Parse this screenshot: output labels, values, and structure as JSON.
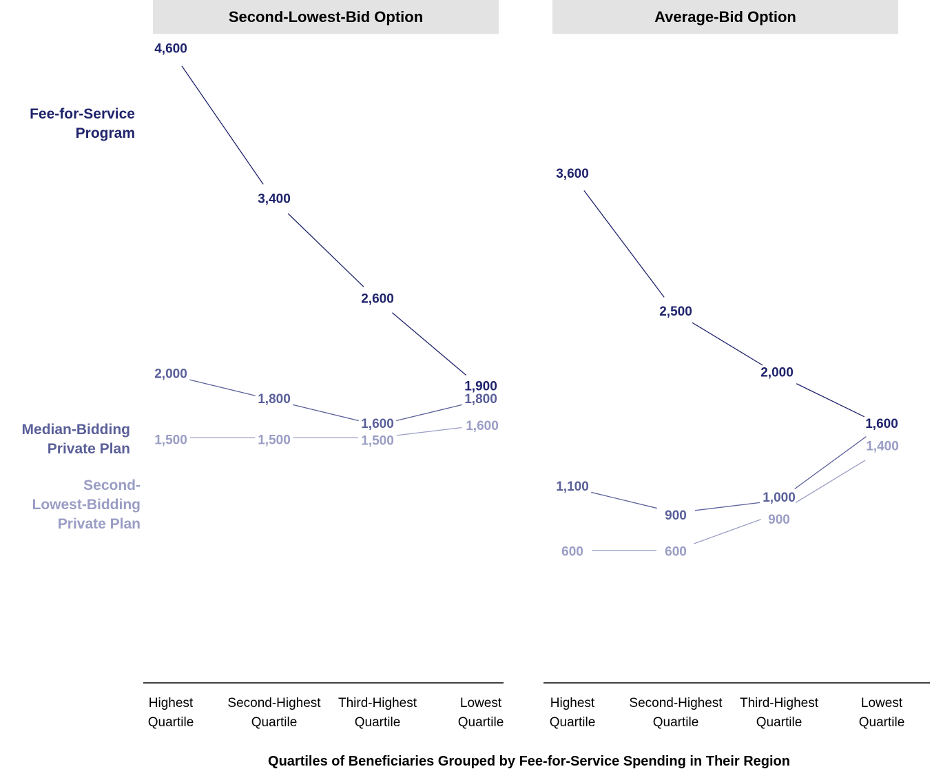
{
  "colors": {
    "fee_for_service": "#1f236b",
    "median_bidding": "#5a5f99",
    "second_lowest_bidding": "#9a9dc4",
    "title_bar": "#e3e3e3"
  },
  "series_labels": {
    "fee_for_service": [
      "Fee-for-Service",
      "Program"
    ],
    "median_bidding": [
      "Median-Bidding",
      "Private Plan"
    ],
    "second_lowest_bidding": [
      "Second-",
      "Lowest-Bidding",
      "Private Plan"
    ]
  },
  "x_axis_title": "Quartiles of Beneficiaries Grouped by Fee-for-Service Spending in Their Region",
  "chart_data": [
    {
      "type": "line",
      "title": "Second-Lowest-Bid Option",
      "categories": [
        [
          "Highest",
          "Quartile"
        ],
        [
          "Second-Highest",
          "Quartile"
        ],
        [
          "Third-Highest",
          "Quartile"
        ],
        [
          "Lowest",
          "Quartile"
        ]
      ],
      "series": [
        {
          "key": "fee_for_service",
          "name": "Fee-for-Service Program",
          "values": [
            4600,
            3400,
            2600,
            1900
          ],
          "labels": [
            "4,600",
            "3,400",
            "2,600",
            "1,900"
          ]
        },
        {
          "key": "median_bidding",
          "name": "Median-Bidding Private Plan",
          "values": [
            2000,
            1800,
            1600,
            1800
          ],
          "labels": [
            "2,000",
            "1,800",
            "1,600",
            "1,800"
          ]
        },
        {
          "key": "second_lowest_bidding",
          "name": "Second-Lowest-Bidding Private Plan",
          "values": [
            1500,
            1500,
            1500,
            1600
          ],
          "labels": [
            "1,500",
            "1,500",
            "1,500",
            "1,600"
          ]
        }
      ]
    },
    {
      "type": "line",
      "title": "Average-Bid Option",
      "categories": [
        [
          "Highest",
          "Quartile"
        ],
        [
          "Second-Highest",
          "Quartile"
        ],
        [
          "Third-Highest",
          "Quartile"
        ],
        [
          "Lowest",
          "Quartile"
        ]
      ],
      "series": [
        {
          "key": "fee_for_service",
          "name": "Fee-for-Service Program",
          "values": [
            3600,
            2500,
            2000,
            1600
          ],
          "labels": [
            "3,600",
            "2,500",
            "2,000",
            "1,600"
          ]
        },
        {
          "key": "median_bidding",
          "name": "Median-Bidding Private Plan",
          "values": [
            1100,
            900,
            1000,
            1600
          ],
          "labels": [
            "1,100",
            "900",
            "1,000",
            ""
          ]
        },
        {
          "key": "second_lowest_bidding",
          "name": "Second-Lowest-Bidding Private Plan",
          "values": [
            600,
            600,
            900,
            1400
          ],
          "labels": [
            "600",
            "600",
            "900",
            "1,400"
          ]
        }
      ]
    }
  ]
}
